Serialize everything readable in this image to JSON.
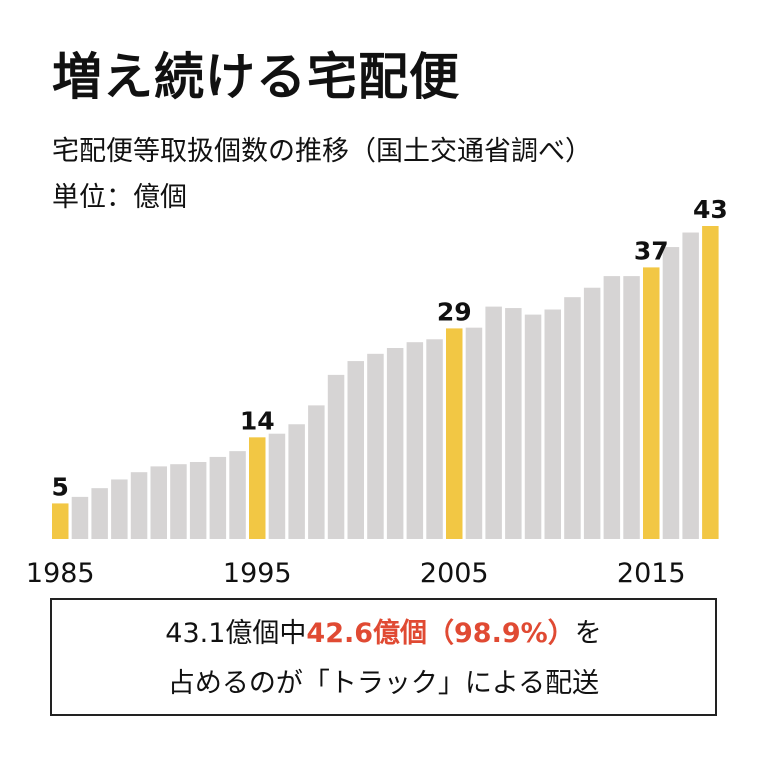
{
  "title": "増え続ける宅配便",
  "subtitle": "宅配便等取扱個数の推移（国土交通省調べ）",
  "unit_label": "単位：億個",
  "colors": {
    "highlight": "#f2c744",
    "bar": "#d6d4d4",
    "accent": "#e04a33",
    "text": "#111111"
  },
  "chart_data": {
    "type": "bar",
    "title": "増え続ける宅配便",
    "subtitle": "宅配便等取扱個数の推移（国土交通省調べ）",
    "ylabel": "単位：億個",
    "ylim": [
      0,
      45
    ],
    "grid": false,
    "x": [
      1985,
      1986,
      1987,
      1988,
      1989,
      1990,
      1991,
      1992,
      1993,
      1994,
      1995,
      1996,
      1997,
      1998,
      1999,
      2000,
      2001,
      2002,
      2003,
      2004,
      2005,
      2006,
      2007,
      2008,
      2009,
      2010,
      2011,
      2012,
      2013,
      2014,
      2015,
      2016,
      2017,
      2018
    ],
    "values": [
      4.9,
      5.8,
      7.0,
      8.2,
      9.2,
      10.0,
      10.3,
      10.6,
      11.3,
      12.1,
      14.0,
      14.5,
      15.8,
      18.4,
      22.6,
      24.5,
      25.5,
      26.3,
      27.1,
      27.5,
      29.0,
      29.1,
      32.0,
      31.8,
      30.9,
      31.6,
      33.3,
      34.6,
      36.2,
      36.2,
      37.4,
      40.2,
      42.2,
      43.1
    ],
    "highlight": [
      1985,
      1995,
      2005,
      2015,
      2018
    ],
    "data_labels": [
      {
        "x": 1985,
        "text": "5"
      },
      {
        "x": 1995,
        "text": "14"
      },
      {
        "x": 2005,
        "text": "29"
      },
      {
        "x": 2015,
        "text": "37"
      },
      {
        "x": 2018,
        "text": "43"
      }
    ],
    "tick_labels": [
      {
        "x": 1985,
        "text": "1985"
      },
      {
        "x": 1995,
        "text": "1995"
      },
      {
        "x": 2005,
        "text": "2005"
      },
      {
        "x": 2015,
        "text": "2015"
      }
    ]
  },
  "note": {
    "line1_pre": "43.1億個中",
    "line1_highlight": "42.6億個（98.9%）",
    "line1_post": "を",
    "line2": "占めるのが「トラック」による配送"
  }
}
